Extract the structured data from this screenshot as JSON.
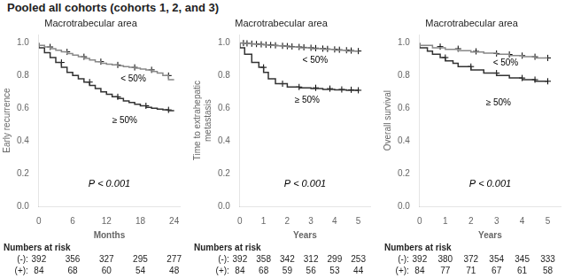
{
  "title": "Pooled all cohorts (cohorts 1, 2, and 3)",
  "chart_data": [
    {
      "type": "line",
      "title": "Macrotrabecular area",
      "ylabel": "Early recurrence",
      "xlabel": "Months",
      "xlim": [
        0,
        25
      ],
      "ylim": [
        0.0,
        1.05
      ],
      "xticks": [
        0,
        6,
        12,
        18,
        24
      ],
      "yticks": [
        {
          "value": 0.0,
          "label": "0.0"
        },
        0.2,
        0.4,
        0.6,
        0.8,
        {
          "value": 1.0,
          "label": "1.0"
        }
      ],
      "grid": false,
      "annotation": "P < 0.001",
      "risk_table": {
        "title": "Numbers at risk",
        "rows": [
          {
            "name": "(-):",
            "values": [
              392,
              356,
              327,
              295,
              277
            ]
          },
          {
            "name": "(+):",
            "values": [
              84,
              68,
              60,
              54,
              48
            ]
          }
        ]
      },
      "series": [
        {
          "type": "line",
          "line_style": "step",
          "name": "< 50%",
          "color": "#888888",
          "x": [
            0,
            1,
            2,
            3,
            4,
            5,
            6,
            7,
            8,
            9,
            10,
            11,
            12,
            13,
            14,
            15,
            16,
            17,
            18,
            19,
            20,
            21,
            22,
            23,
            24
          ],
          "values": [
            1.0,
            0.985,
            0.975,
            0.965,
            0.955,
            0.945,
            0.935,
            0.925,
            0.915,
            0.905,
            0.895,
            0.885,
            0.875,
            0.87,
            0.865,
            0.86,
            0.855,
            0.85,
            0.845,
            0.84,
            0.835,
            0.825,
            0.815,
            0.8,
            0.775
          ]
        },
        {
          "type": "scatter",
          "marker": "plus",
          "color": "#000000",
          "x": [
            2,
            5,
            8,
            11,
            14,
            17,
            20,
            23
          ],
          "values": [
            0.975,
            0.945,
            0.915,
            0.885,
            0.865,
            0.85,
            0.835,
            0.8
          ]
        },
        {
          "type": "line",
          "line_style": "step",
          "name": "≥ 50%",
          "color": "#333333",
          "x": [
            0,
            1,
            2,
            3,
            4,
            5,
            6,
            7,
            8,
            9,
            10,
            11,
            12,
            13,
            14,
            15,
            16,
            17,
            18,
            19,
            20,
            21,
            22,
            23,
            24
          ],
          "values": [
            1.0,
            0.97,
            0.94,
            0.91,
            0.88,
            0.85,
            0.82,
            0.8,
            0.78,
            0.76,
            0.74,
            0.72,
            0.7,
            0.685,
            0.67,
            0.66,
            0.645,
            0.635,
            0.625,
            0.615,
            0.605,
            0.6,
            0.595,
            0.59,
            0.585
          ]
        },
        {
          "type": "scatter",
          "marker": "plus",
          "color": "#000000",
          "x": [
            4,
            9,
            14,
            19,
            23
          ],
          "values": [
            0.88,
            0.76,
            0.67,
            0.615,
            0.59
          ]
        }
      ]
    },
    {
      "type": "line",
      "title": "Macrotrabecular area",
      "ylabel": "Time to extrahepatic\nmetastasis",
      "xlabel": "Years",
      "xlim": [
        0,
        5.5
      ],
      "ylim": [
        0.0,
        1.05
      ],
      "xticks": [
        0,
        1,
        2,
        3,
        4,
        5
      ],
      "yticks": [
        {
          "value": 0.0,
          "label": "0.0"
        },
        0.2,
        0.4,
        0.6,
        0.8,
        {
          "value": 1.0,
          "label": "1.0"
        }
      ],
      "grid": false,
      "annotation": "P < 0.001",
      "risk_table": {
        "title": "Numbers at risk",
        "rows": [
          {
            "name": "(-):",
            "values": [
              392,
              358,
              342,
              312,
              299,
              253
            ]
          },
          {
            "name": "(+):",
            "values": [
              84,
              68,
              59,
              56,
              53,
              44
            ]
          }
        ]
      },
      "series": [
        {
          "type": "line",
          "line_style": "step",
          "name": "< 50%",
          "color": "#888888",
          "x": [
            0,
            0.1,
            0.2,
            0.3,
            0.5,
            0.7,
            1.0,
            1.2,
            1.5,
            1.8,
            2.0,
            2.5,
            3.0,
            3.5,
            4.0,
            4.5,
            5.0
          ],
          "values": [
            1.0,
            1.0,
            0.998,
            0.997,
            0.995,
            0.993,
            0.99,
            0.988,
            0.985,
            0.982,
            0.98,
            0.975,
            0.97,
            0.965,
            0.96,
            0.955,
            0.95
          ]
        },
        {
          "type": "scatter",
          "marker": "plus",
          "color": "#000000",
          "x": [
            0.15,
            0.3,
            0.5,
            0.7,
            0.9,
            1.1,
            1.3,
            1.5,
            1.8,
            2.0,
            2.2,
            2.5,
            2.7,
            3.0,
            3.2,
            3.5,
            3.7,
            4.0,
            4.2,
            4.5,
            4.7,
            5.0
          ],
          "values": [
            0.999,
            0.997,
            0.995,
            0.993,
            0.991,
            0.989,
            0.987,
            0.985,
            0.982,
            0.98,
            0.978,
            0.975,
            0.973,
            0.97,
            0.968,
            0.965,
            0.963,
            0.96,
            0.958,
            0.955,
            0.953,
            0.95
          ]
        },
        {
          "type": "line",
          "line_style": "step",
          "name": "≥ 50%",
          "color": "#333333",
          "x": [
            0,
            0.2,
            0.5,
            0.8,
            1.0,
            1.2,
            1.5,
            2.0,
            2.5,
            3.0,
            3.5,
            4.0,
            4.5,
            5.0
          ],
          "values": [
            1.0,
            0.97,
            0.93,
            0.88,
            0.85,
            0.82,
            0.78,
            0.75,
            0.73,
            0.725,
            0.72,
            0.715,
            0.713,
            0.71
          ]
        },
        {
          "type": "scatter",
          "marker": "plus",
          "color": "#000000",
          "x": [
            1.0,
            1.8,
            2.5,
            3.2,
            3.8,
            4.3,
            4.7,
            5.0
          ],
          "values": [
            0.85,
            0.75,
            0.73,
            0.725,
            0.72,
            0.715,
            0.713,
            0.71
          ]
        }
      ]
    },
    {
      "type": "line",
      "title": "Macrotrabecular area",
      "ylabel": "Overall survival",
      "xlabel": "Years",
      "xlim": [
        0,
        5.5
      ],
      "ylim": [
        0.0,
        1.05
      ],
      "xticks": [
        0,
        1,
        2,
        3,
        4,
        5
      ],
      "yticks": [
        {
          "value": 0.0,
          "label": "0.0"
        },
        0.2,
        0.4,
        0.6,
        0.8,
        {
          "value": 1.0,
          "label": "1.0"
        }
      ],
      "grid": false,
      "annotation": "P < 0.001",
      "risk_table": {
        "title": "Numbers at risk",
        "rows": [
          {
            "name": "(-):",
            "values": [
              392,
              380,
              372,
              354,
              345,
              333
            ]
          },
          {
            "name": "(+):",
            "values": [
              84,
              77,
              71,
              67,
              61,
              58
            ]
          }
        ]
      },
      "series": [
        {
          "type": "line",
          "line_style": "step",
          "name": "< 50%",
          "color": "#888888",
          "x": [
            0,
            0.5,
            1.0,
            1.5,
            2.0,
            2.5,
            3.0,
            3.5,
            4.0,
            4.5,
            5.0
          ],
          "values": [
            1.0,
            0.985,
            0.97,
            0.96,
            0.952,
            0.944,
            0.937,
            0.93,
            0.922,
            0.915,
            0.908
          ]
        },
        {
          "type": "scatter",
          "marker": "plus",
          "color": "#000000",
          "x": [
            0.8,
            1.5,
            2.2,
            3.0,
            3.5,
            4.0,
            4.5,
            5.0
          ],
          "values": [
            0.977,
            0.964,
            0.948,
            0.935,
            0.929,
            0.922,
            0.915,
            0.908
          ]
        },
        {
          "type": "line",
          "line_style": "step",
          "name": "≥ 50%",
          "color": "#333333",
          "x": [
            0,
            0.3,
            0.5,
            0.8,
            1.0,
            1.3,
            1.5,
            2.0,
            2.5,
            3.0,
            3.5,
            4.0,
            4.5,
            5.0
          ],
          "values": [
            1.0,
            0.97,
            0.95,
            0.93,
            0.91,
            0.89,
            0.875,
            0.855,
            0.835,
            0.815,
            0.8,
            0.785,
            0.775,
            0.765
          ]
        },
        {
          "type": "scatter",
          "marker": "plus",
          "color": "#000000",
          "x": [
            1.0,
            2.0,
            3.0,
            4.0,
            4.5,
            5.0
          ],
          "values": [
            0.91,
            0.855,
            0.815,
            0.785,
            0.775,
            0.765
          ]
        }
      ]
    }
  ]
}
